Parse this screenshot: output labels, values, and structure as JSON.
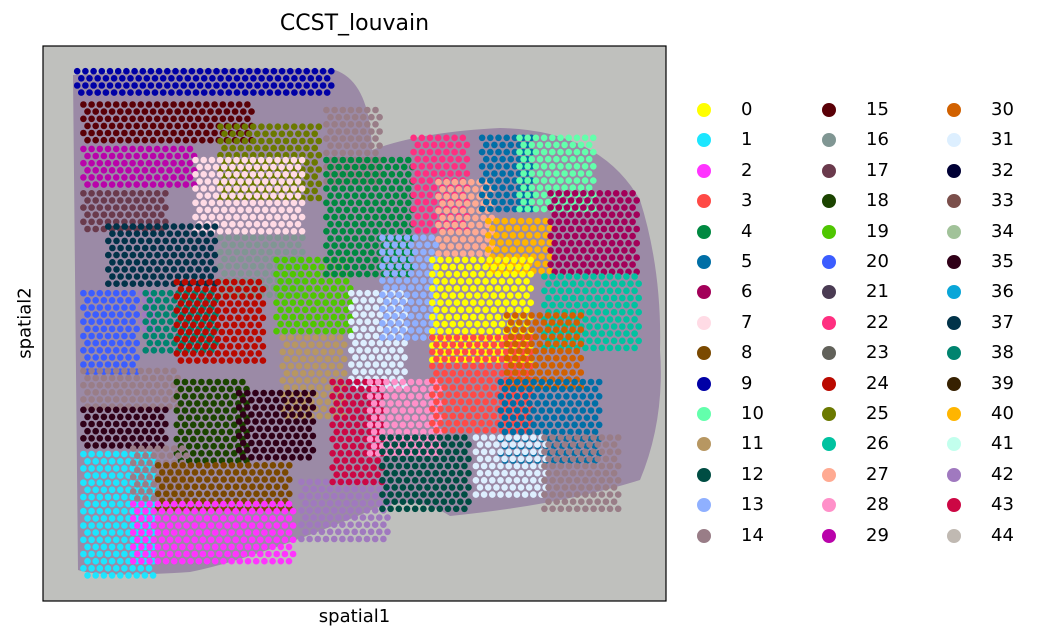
{
  "chart_data": {
    "type": "scatter",
    "title": "CCST_louvain",
    "xlabel": "spatial1",
    "ylabel": "spatial2",
    "background": "tissue-image",
    "legend_position": "right",
    "legend_columns": 3,
    "categories": [
      "0",
      "1",
      "2",
      "3",
      "4",
      "5",
      "6",
      "7",
      "8",
      "9",
      "10",
      "11",
      "12",
      "13",
      "14",
      "15",
      "16",
      "17",
      "18",
      "19",
      "20",
      "21",
      "22",
      "23",
      "24",
      "25",
      "26",
      "27",
      "28",
      "29",
      "30",
      "31",
      "32",
      "33",
      "34",
      "35",
      "36",
      "37",
      "38",
      "39",
      "40",
      "41",
      "42",
      "43",
      "44"
    ],
    "colors": [
      "#ffff00",
      "#1ce6ff",
      "#ff34ff",
      "#ff4a46",
      "#008941",
      "#006fa6",
      "#a30059",
      "#ffdbe5",
      "#7a4900",
      "#0000a6",
      "#63ffac",
      "#b79762",
      "#004d43",
      "#8fb0ff",
      "#997d87",
      "#5a0007",
      "#809693",
      "#6a3a4c",
      "#1b4400",
      "#4fc601",
      "#3b5dff",
      "#4a3b53",
      "#ff2f80",
      "#61615a",
      "#ba0900",
      "#6b7900",
      "#00c2a0",
      "#ffaa92",
      "#ff90c9",
      "#b903aa",
      "#d16100",
      "#ddefff",
      "#000035",
      "#7b4f4b",
      "#a1c299",
      "#300018",
      "#0aa6d8",
      "#013349",
      "#00846f",
      "#372101",
      "#ffb500",
      "#c2ffed",
      "#a079bf",
      "#cc0744",
      "#c0b9b2"
    ],
    "regions": [
      {
        "cluster": "9",
        "points": [
          [
            0.05,
            0.04
          ],
          [
            0.47,
            0.05
          ],
          [
            0.47,
            0.1
          ],
          [
            0.05,
            0.1
          ]
        ]
      },
      {
        "cluster": "15",
        "points": [
          [
            0.06,
            0.1
          ],
          [
            0.34,
            0.1
          ],
          [
            0.34,
            0.18
          ],
          [
            0.06,
            0.18
          ]
        ]
      },
      {
        "cluster": "29",
        "points": [
          [
            0.06,
            0.18
          ],
          [
            0.25,
            0.18
          ],
          [
            0.25,
            0.26
          ],
          [
            0.06,
            0.26
          ]
        ]
      },
      {
        "cluster": "25",
        "points": [
          [
            0.28,
            0.14
          ],
          [
            0.45,
            0.14
          ],
          [
            0.45,
            0.28
          ],
          [
            0.28,
            0.28
          ]
        ]
      },
      {
        "cluster": "14",
        "points": [
          [
            0.45,
            0.11
          ],
          [
            0.55,
            0.11
          ],
          [
            0.55,
            0.25
          ],
          [
            0.45,
            0.25
          ]
        ]
      },
      {
        "cluster": "7",
        "points": [
          [
            0.24,
            0.2
          ],
          [
            0.42,
            0.2
          ],
          [
            0.42,
            0.35
          ],
          [
            0.24,
            0.35
          ]
        ]
      },
      {
        "cluster": "17",
        "points": [
          [
            0.06,
            0.26
          ],
          [
            0.2,
            0.26
          ],
          [
            0.2,
            0.34
          ],
          [
            0.06,
            0.34
          ]
        ]
      },
      {
        "cluster": "37",
        "points": [
          [
            0.1,
            0.32
          ],
          [
            0.28,
            0.32
          ],
          [
            0.28,
            0.44
          ],
          [
            0.1,
            0.44
          ]
        ]
      },
      {
        "cluster": "16",
        "points": [
          [
            0.28,
            0.34
          ],
          [
            0.42,
            0.34
          ],
          [
            0.42,
            0.46
          ],
          [
            0.28,
            0.46
          ]
        ]
      },
      {
        "cluster": "42",
        "points": [
          [
            0.06,
            0.44
          ],
          [
            0.18,
            0.44
          ],
          [
            0.18,
            0.52
          ],
          [
            0.06,
            0.52
          ]
        ]
      },
      {
        "cluster": "20",
        "points": [
          [
            0.06,
            0.44
          ],
          [
            0.16,
            0.44
          ],
          [
            0.16,
            0.6
          ],
          [
            0.06,
            0.6
          ]
        ]
      },
      {
        "cluster": "38",
        "points": [
          [
            0.16,
            0.44
          ],
          [
            0.28,
            0.44
          ],
          [
            0.28,
            0.56
          ],
          [
            0.16,
            0.56
          ]
        ]
      },
      {
        "cluster": "24",
        "points": [
          [
            0.21,
            0.42
          ],
          [
            0.36,
            0.42
          ],
          [
            0.36,
            0.58
          ],
          [
            0.21,
            0.58
          ]
        ]
      },
      {
        "cluster": "19",
        "points": [
          [
            0.37,
            0.38
          ],
          [
            0.5,
            0.38
          ],
          [
            0.5,
            0.52
          ],
          [
            0.37,
            0.52
          ]
        ]
      },
      {
        "cluster": "4",
        "points": [
          [
            0.45,
            0.2
          ],
          [
            0.6,
            0.2
          ],
          [
            0.6,
            0.42
          ],
          [
            0.45,
            0.42
          ]
        ]
      },
      {
        "cluster": "11",
        "points": [
          [
            0.38,
            0.52
          ],
          [
            0.49,
            0.52
          ],
          [
            0.49,
            0.68
          ],
          [
            0.38,
            0.68
          ]
        ]
      },
      {
        "cluster": "14",
        "points": [
          [
            0.06,
            0.58
          ],
          [
            0.22,
            0.58
          ],
          [
            0.22,
            0.66
          ],
          [
            0.06,
            0.66
          ]
        ]
      },
      {
        "cluster": "35",
        "points": [
          [
            0.06,
            0.65
          ],
          [
            0.2,
            0.65
          ],
          [
            0.2,
            0.73
          ],
          [
            0.06,
            0.73
          ]
        ]
      },
      {
        "cluster": "18",
        "points": [
          [
            0.21,
            0.6
          ],
          [
            0.33,
            0.6
          ],
          [
            0.33,
            0.76
          ],
          [
            0.21,
            0.76
          ]
        ]
      },
      {
        "cluster": "35",
        "points": [
          [
            0.31,
            0.62
          ],
          [
            0.44,
            0.62
          ],
          [
            0.44,
            0.75
          ],
          [
            0.31,
            0.75
          ]
        ]
      },
      {
        "cluster": "1",
        "points": [
          [
            0.06,
            0.73
          ],
          [
            0.18,
            0.73
          ],
          [
            0.18,
            0.96
          ],
          [
            0.06,
            0.96
          ]
        ]
      },
      {
        "cluster": "14",
        "points": [
          [
            0.14,
            0.72
          ],
          [
            0.24,
            0.72
          ],
          [
            0.24,
            0.82
          ],
          [
            0.14,
            0.82
          ]
        ]
      },
      {
        "cluster": "8",
        "points": [
          [
            0.18,
            0.75
          ],
          [
            0.4,
            0.75
          ],
          [
            0.4,
            0.84
          ],
          [
            0.18,
            0.84
          ]
        ]
      },
      {
        "cluster": "2",
        "points": [
          [
            0.14,
            0.82
          ],
          [
            0.41,
            0.82
          ],
          [
            0.41,
            0.94
          ],
          [
            0.14,
            0.94
          ]
        ]
      },
      {
        "cluster": "42",
        "points": [
          [
            0.41,
            0.78
          ],
          [
            0.56,
            0.78
          ],
          [
            0.56,
            0.9
          ],
          [
            0.41,
            0.9
          ]
        ]
      },
      {
        "cluster": "31",
        "points": [
          [
            0.49,
            0.44
          ],
          [
            0.59,
            0.44
          ],
          [
            0.59,
            0.62
          ],
          [
            0.49,
            0.62
          ]
        ]
      },
      {
        "cluster": "13",
        "points": [
          [
            0.54,
            0.34
          ],
          [
            0.64,
            0.34
          ],
          [
            0.64,
            0.54
          ],
          [
            0.54,
            0.54
          ]
        ]
      },
      {
        "cluster": "43",
        "points": [
          [
            0.46,
            0.6
          ],
          [
            0.55,
            0.6
          ],
          [
            0.55,
            0.8
          ],
          [
            0.46,
            0.8
          ]
        ]
      },
      {
        "cluster": "28",
        "points": [
          [
            0.52,
            0.6
          ],
          [
            0.64,
            0.6
          ],
          [
            0.64,
            0.74
          ],
          [
            0.52,
            0.74
          ]
        ]
      },
      {
        "cluster": "22",
        "points": [
          [
            0.59,
            0.16
          ],
          [
            0.69,
            0.16
          ],
          [
            0.69,
            0.34
          ],
          [
            0.59,
            0.34
          ]
        ]
      },
      {
        "cluster": "27",
        "points": [
          [
            0.63,
            0.24
          ],
          [
            0.73,
            0.24
          ],
          [
            0.73,
            0.38
          ],
          [
            0.63,
            0.38
          ]
        ]
      },
      {
        "cluster": "5",
        "points": [
          [
            0.7,
            0.16
          ],
          [
            0.79,
            0.16
          ],
          [
            0.79,
            0.3
          ],
          [
            0.7,
            0.3
          ]
        ]
      },
      {
        "cluster": "10",
        "points": [
          [
            0.76,
            0.16
          ],
          [
            0.89,
            0.16
          ],
          [
            0.89,
            0.3
          ],
          [
            0.76,
            0.3
          ]
        ]
      },
      {
        "cluster": "40",
        "points": [
          [
            0.71,
            0.31
          ],
          [
            0.82,
            0.31
          ],
          [
            0.82,
            0.41
          ],
          [
            0.71,
            0.41
          ]
        ]
      },
      {
        "cluster": "6",
        "points": [
          [
            0.81,
            0.26
          ],
          [
            0.96,
            0.26
          ],
          [
            0.96,
            0.42
          ],
          [
            0.81,
            0.42
          ]
        ]
      },
      {
        "cluster": "26",
        "points": [
          [
            0.8,
            0.41
          ],
          [
            0.96,
            0.41
          ],
          [
            0.96,
            0.55
          ],
          [
            0.8,
            0.55
          ]
        ]
      },
      {
        "cluster": "0",
        "points": [
          [
            0.62,
            0.38
          ],
          [
            0.79,
            0.38
          ],
          [
            0.79,
            0.58
          ],
          [
            0.62,
            0.58
          ]
        ]
      },
      {
        "cluster": "3",
        "points": [
          [
            0.62,
            0.52
          ],
          [
            0.79,
            0.52
          ],
          [
            0.79,
            0.7
          ],
          [
            0.62,
            0.7
          ]
        ]
      },
      {
        "cluster": "30",
        "points": [
          [
            0.74,
            0.48
          ],
          [
            0.87,
            0.48
          ],
          [
            0.87,
            0.62
          ],
          [
            0.74,
            0.62
          ]
        ]
      },
      {
        "cluster": "5",
        "points": [
          [
            0.73,
            0.6
          ],
          [
            0.9,
            0.6
          ],
          [
            0.9,
            0.76
          ],
          [
            0.73,
            0.76
          ]
        ]
      },
      {
        "cluster": "12",
        "points": [
          [
            0.54,
            0.7
          ],
          [
            0.69,
            0.7
          ],
          [
            0.69,
            0.84
          ],
          [
            0.54,
            0.84
          ]
        ]
      },
      {
        "cluster": "31",
        "points": [
          [
            0.69,
            0.7
          ],
          [
            0.81,
            0.7
          ],
          [
            0.81,
            0.82
          ],
          [
            0.69,
            0.82
          ]
        ]
      },
      {
        "cluster": "14",
        "points": [
          [
            0.8,
            0.7
          ],
          [
            0.93,
            0.7
          ],
          [
            0.93,
            0.84
          ],
          [
            0.8,
            0.84
          ]
        ]
      }
    ]
  }
}
